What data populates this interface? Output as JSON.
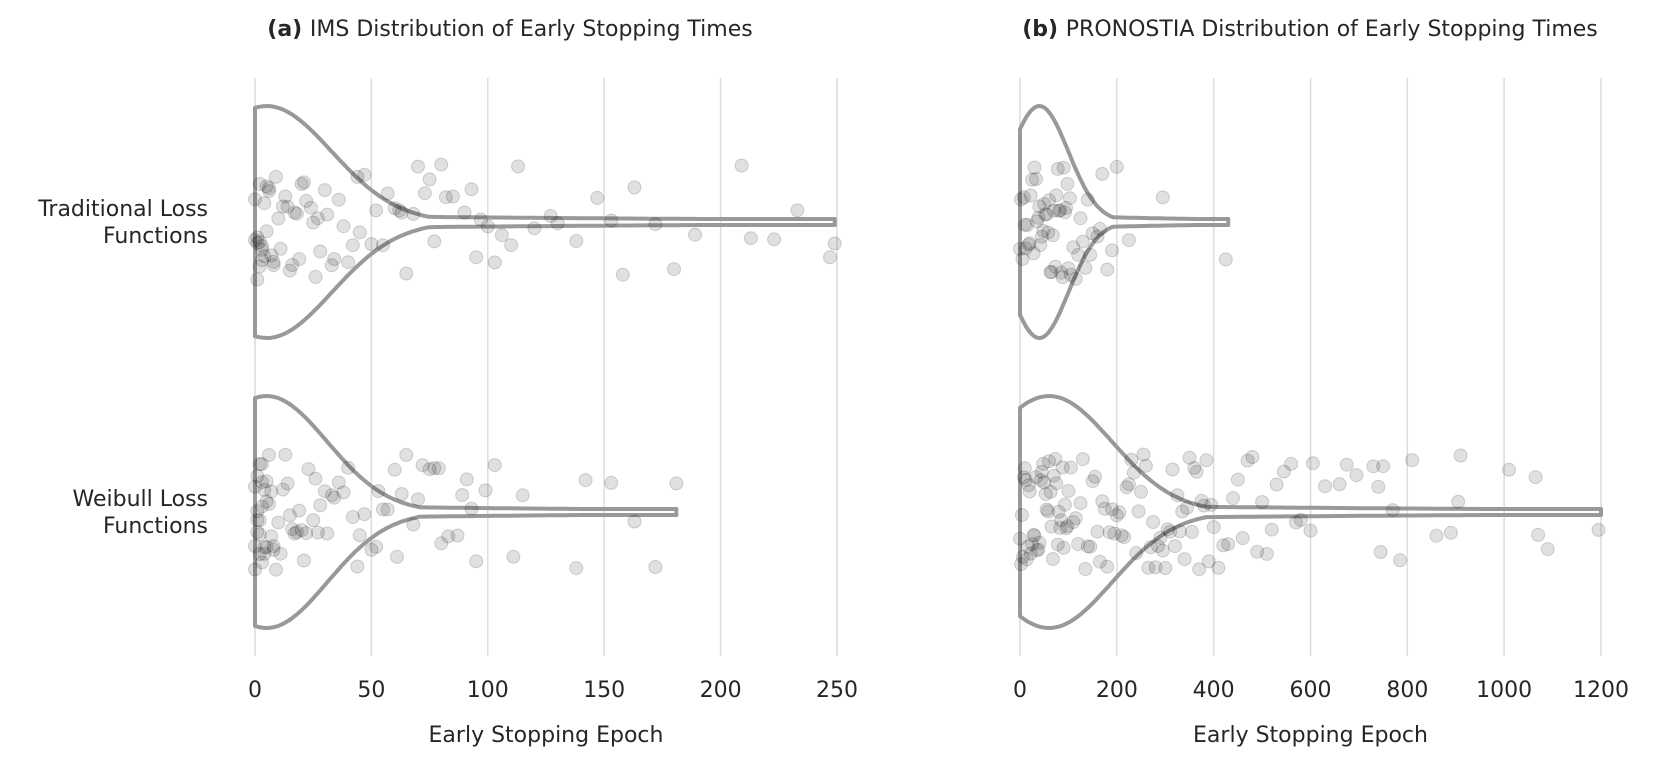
{
  "chart_data": [
    {
      "type": "violin+strip",
      "orientation": "horizontal",
      "title_bold": "(a)",
      "title": "IMS Distribution of Early Stopping Times",
      "xlabel": "Early Stopping Epoch",
      "ylabel": "",
      "xlim": [
        0,
        250
      ],
      "xticks": [
        0,
        50,
        100,
        150,
        200,
        250
      ],
      "grid": "vertical",
      "categories": [
        {
          "lines": [
            "Traditional Loss",
            "Functions"
          ],
          "max_epoch": 249,
          "kde_peak": 5,
          "kde_sigma": 28,
          "points": [
            0,
            0,
            1,
            1,
            1,
            2,
            2,
            2,
            3,
            3,
            3,
            4,
            4,
            5,
            5,
            6,
            6,
            7,
            8,
            8,
            9,
            10,
            11,
            12,
            13,
            14,
            15,
            16,
            17,
            18,
            19,
            20,
            21,
            22,
            24,
            25,
            26,
            27,
            28,
            30,
            31,
            33,
            34,
            36,
            38,
            40,
            42,
            44,
            45,
            47,
            50,
            52,
            55,
            57,
            60,
            62,
            63,
            65,
            68,
            70,
            73,
            75,
            77,
            80,
            82,
            85,
            90,
            93,
            95,
            97,
            100,
            103,
            106,
            110,
            113,
            120,
            127,
            130,
            138,
            147,
            153,
            158,
            163,
            172,
            180,
            189,
            209,
            213,
            223,
            233,
            247,
            249
          ]
        },
        {
          "lines": [
            "Weibull Loss",
            "Functions"
          ],
          "max_epoch": 181,
          "kde_peak": 5,
          "kde_sigma": 26,
          "points": [
            0,
            0,
            0,
            1,
            1,
            1,
            1,
            2,
            2,
            2,
            2,
            3,
            3,
            3,
            3,
            4,
            4,
            4,
            5,
            5,
            5,
            6,
            6,
            7,
            7,
            8,
            8,
            9,
            10,
            11,
            12,
            13,
            14,
            15,
            16,
            17,
            18,
            19,
            20,
            21,
            22,
            23,
            25,
            26,
            27,
            28,
            30,
            31,
            33,
            34,
            36,
            38,
            40,
            42,
            44,
            45,
            47,
            50,
            52,
            53,
            55,
            57,
            60,
            61,
            63,
            65,
            68,
            70,
            72,
            75,
            77,
            79,
            80,
            83,
            87,
            89,
            91,
            93,
            95,
            99,
            103,
            111,
            115,
            138,
            142,
            153,
            163,
            172,
            181
          ]
        }
      ]
    },
    {
      "type": "violin+strip",
      "orientation": "horizontal",
      "title_bold": "(b)",
      "title": "PRONOSTIA Distribution of Early Stopping Times",
      "xlabel": "Early Stopping Epoch",
      "ylabel": "",
      "xlim": [
        0,
        1200
      ],
      "xticks": [
        0,
        200,
        400,
        600,
        800,
        1000,
        1200
      ],
      "grid": "vertical",
      "categories": [
        {
          "lines": [
            "Traditional Loss",
            "Functions"
          ],
          "max_epoch": 430,
          "kde_peak": 40,
          "kde_sigma": 60,
          "points": [
            0,
            2,
            5,
            8,
            10,
            12,
            15,
            18,
            20,
            22,
            25,
            28,
            30,
            33,
            35,
            38,
            40,
            42,
            45,
            48,
            50,
            52,
            55,
            58,
            60,
            63,
            65,
            68,
            70,
            73,
            75,
            78,
            80,
            83,
            85,
            88,
            90,
            93,
            95,
            98,
            100,
            103,
            105,
            110,
            115,
            120,
            125,
            130,
            135,
            140,
            145,
            150,
            160,
            165,
            170,
            180,
            190,
            200,
            225,
            295,
            425
          ]
        },
        {
          "lines": [
            "Weibull Loss",
            "Functions"
          ],
          "max_epoch": 1200,
          "kde_peak": 60,
          "kde_sigma": 130,
          "points": [
            0,
            2,
            4,
            6,
            8,
            10,
            12,
            14,
            16,
            18,
            20,
            22,
            25,
            28,
            30,
            33,
            35,
            38,
            40,
            43,
            45,
            48,
            50,
            53,
            55,
            58,
            60,
            63,
            65,
            68,
            70,
            73,
            75,
            78,
            80,
            83,
            85,
            88,
            90,
            93,
            95,
            98,
            100,
            105,
            110,
            115,
            120,
            125,
            130,
            135,
            140,
            145,
            150,
            155,
            160,
            165,
            170,
            175,
            180,
            185,
            190,
            195,
            200,
            205,
            210,
            215,
            220,
            225,
            230,
            235,
            240,
            245,
            250,
            255,
            260,
            265,
            270,
            275,
            280,
            285,
            290,
            295,
            300,
            305,
            310,
            315,
            320,
            325,
            330,
            335,
            340,
            345,
            350,
            355,
            360,
            365,
            370,
            375,
            380,
            385,
            390,
            395,
            400,
            410,
            420,
            430,
            440,
            450,
            460,
            470,
            480,
            490,
            500,
            510,
            520,
            530,
            545,
            560,
            570,
            580,
            600,
            605,
            630,
            660,
            675,
            695,
            730,
            740,
            745,
            750,
            770,
            785,
            810,
            860,
            890,
            905,
            910,
            1010,
            1065,
            1070,
            1090,
            1195
          ]
        }
      ]
    }
  ]
}
